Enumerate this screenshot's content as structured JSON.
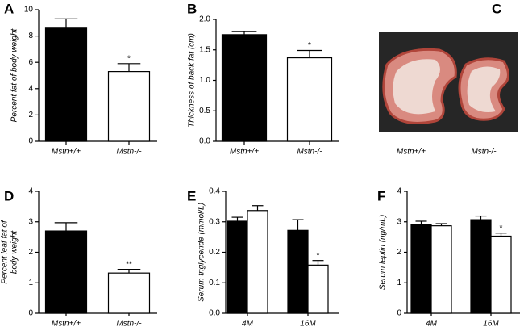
{
  "chart_data": [
    {
      "type": "bar",
      "panel": "A",
      "ylabel": [
        "Percent fat of body weight"
      ],
      "categories": [
        "Mstn+/+",
        "Mstn-/-"
      ],
      "series": [
        {
          "colors": [
            "#000000",
            "#ffffff"
          ],
          "values": [
            8.6,
            5.3
          ],
          "errors": [
            0.7,
            0.6
          ],
          "significance": [
            null,
            "*"
          ]
        }
      ],
      "ylim": [
        0,
        10
      ],
      "yticks": [
        0,
        2,
        4,
        6,
        8,
        10
      ]
    },
    {
      "type": "bar",
      "panel": "B",
      "ylabel": [
        "Thickness of back fat (cm)"
      ],
      "categories": [
        "Mstn+/+",
        "Mstn-/-"
      ],
      "series": [
        {
          "colors": [
            "#000000",
            "#ffffff"
          ],
          "values": [
            1.75,
            1.37
          ],
          "errors": [
            0.05,
            0.12
          ],
          "significance": [
            null,
            "*"
          ]
        }
      ],
      "ylim": [
        0,
        2
      ],
      "yticks": [
        {
          "value": 0,
          "label": "0.0"
        },
        {
          "value": 0.5,
          "label": "0.5"
        },
        {
          "value": 1,
          "label": "1.0"
        },
        {
          "value": 1.5,
          "label": "1.5"
        },
        {
          "value": 2,
          "label": "2.0"
        }
      ]
    },
    {
      "type": "image",
      "panel": "C",
      "categories": [
        "Mstn+/+",
        "Mstn-/-"
      ]
    },
    {
      "type": "bar",
      "panel": "D",
      "ylabel": [
        "Percent leaf fat of",
        "body weight"
      ],
      "categories": [
        "Mstn+/+",
        "Mstn-/-"
      ],
      "series": [
        {
          "colors": [
            "#000000",
            "#ffffff"
          ],
          "values": [
            2.7,
            1.32
          ],
          "errors": [
            0.27,
            0.12
          ],
          "significance": [
            null,
            "**"
          ]
        }
      ],
      "ylim": [
        0,
        4
      ],
      "yticks": [
        0,
        1,
        2,
        3,
        4
      ]
    },
    {
      "type": "bar",
      "panel": "E",
      "ylabel": [
        "Serum triglyceride (mmol/L)"
      ],
      "categories": [
        "4M",
        "16M"
      ],
      "series": [
        {
          "color": "#000000",
          "values": [
            0.302,
            0.272
          ],
          "errors": [
            0.013,
            0.035
          ],
          "significance": [
            null,
            null
          ]
        },
        {
          "color": "#ffffff",
          "values": [
            0.337,
            0.158
          ],
          "errors": [
            0.016,
            0.015
          ],
          "significance": [
            null,
            "*"
          ]
        }
      ],
      "ylim": [
        0,
        0.4
      ],
      "yticks": [
        {
          "value": 0,
          "label": "0.0"
        },
        {
          "value": 0.1,
          "label": "0.1"
        },
        {
          "value": 0.2,
          "label": "0.2"
        },
        {
          "value": 0.3,
          "label": "0.3"
        },
        {
          "value": 0.4,
          "label": "0.4"
        }
      ]
    },
    {
      "type": "bar",
      "panel": "F",
      "ylabel": [
        "Serum leptin (ng/mL)"
      ],
      "categories": [
        "4M",
        "16M"
      ],
      "series": [
        {
          "color": "#000000",
          "values": [
            2.92,
            3.07
          ],
          "errors": [
            0.1,
            0.12
          ],
          "significance": [
            null,
            null
          ]
        },
        {
          "color": "#ffffff",
          "values": [
            2.87,
            2.53
          ],
          "errors": [
            0.07,
            0.1
          ],
          "significance": [
            null,
            "*"
          ]
        }
      ],
      "ylim": [
        0,
        4
      ],
      "yticks": [
        0,
        1,
        2,
        3,
        4
      ]
    }
  ]
}
